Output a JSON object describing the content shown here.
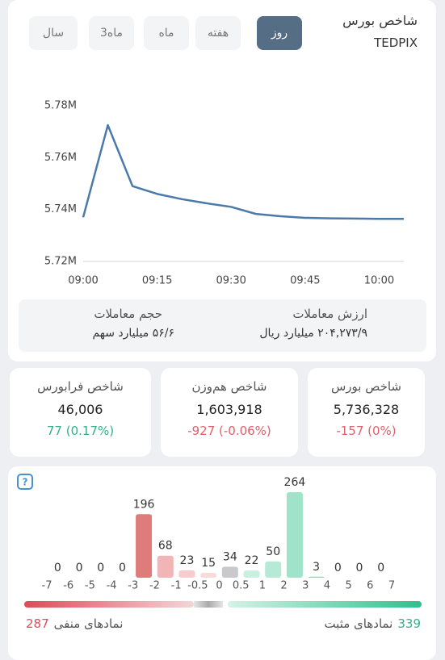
{
  "header": {
    "title": "شاخص بورس",
    "subtitle": "TEDPIX"
  },
  "tabs": [
    "روز",
    "هفته",
    "ماه",
    "3ماه",
    "سال"
  ],
  "chart_data": [
    {
      "type": "line",
      "color": "#4b7aa8",
      "x": [
        "09:00",
        "09:05",
        "09:10",
        "09:15",
        "09:20",
        "09:25",
        "09:30",
        "09:35",
        "09:40",
        "09:45",
        "09:50",
        "09:55",
        "10:00",
        "10:05"
      ],
      "values": [
        5737000,
        5772500,
        5749000,
        5746000,
        5744000,
        5742400,
        5741000,
        5738300,
        5737400,
        5736800,
        5736600,
        5736500,
        5736400,
        5736400
      ],
      "xlim": [
        "09:00",
        "10:05"
      ],
      "xticks": [
        "09:00",
        "09:15",
        "09:30",
        "09:45",
        "10:00"
      ],
      "ylim": [
        5720000,
        5780000
      ],
      "yticks": [
        {
          "value": 5720000,
          "label": "5.72M"
        },
        {
          "value": 5740000,
          "label": "5.74M"
        },
        {
          "value": 5760000,
          "label": "5.76M"
        },
        {
          "value": 5780000,
          "label": "5.78M"
        }
      ]
    },
    {
      "type": "histogram",
      "bins": [
        -7,
        -6,
        -5,
        -4,
        -3,
        -2,
        -1,
        -0.5,
        0,
        0.5,
        1,
        2,
        3,
        4,
        5,
        6,
        7
      ],
      "values": [
        0,
        0,
        0,
        0,
        196,
        68,
        23,
        15,
        34,
        22,
        50,
        264,
        3,
        0,
        0,
        0
      ],
      "colors": [
        "#e07b7b",
        "#e07b7b",
        "#e07b7b",
        "#e07b7b",
        "#e07b7b",
        "#f2b5b5",
        "#f6cccc",
        "#f8dada",
        "#c9c9cd",
        "#c9efe1",
        "#b6ead7",
        "#9ee3ca",
        "#7fd8b6",
        "#7fd8b6",
        "#7fd8b6",
        "#7fd8b6"
      ]
    }
  ],
  "trade_stats": [
    {
      "label": "ارزش معاملات",
      "value": "۲۰۴,۲۷۳/۹ میلیارد ریال"
    },
    {
      "label": "حجم معاملات",
      "value": "۵۶/۶ میلیارد سهم"
    }
  ],
  "indices": [
    {
      "name": "شاخص بورس",
      "value": "5,736,328",
      "change": "-157 (0%)",
      "change_color": "#e0606a"
    },
    {
      "name": "شاخص هم‌وزن",
      "value": "1,603,918",
      "change": "-927 (-0.06%)",
      "change_color": "#e0606a"
    },
    {
      "name": "شاخص فرابورس",
      "value": "46,006",
      "change": "77 (0.17%)",
      "change_color": "#2fb386"
    }
  ],
  "breadth": {
    "negative_label": "نمادهای منفی",
    "negative_count": "287",
    "positive_label": "نمادهای مثبت",
    "positive_count": "339"
  }
}
